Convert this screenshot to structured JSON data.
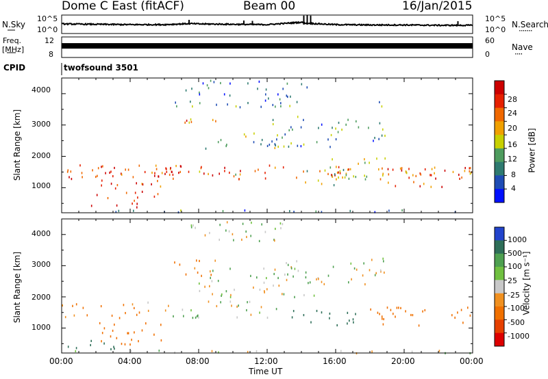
{
  "header": {
    "station": "Dome C East (fitACF)",
    "beam": "Beam 00",
    "date": "16/Jan/2015"
  },
  "side_labels": {
    "nsky": "N.Sky",
    "nsearch": "N.Search",
    "nsearch_dots": "·······",
    "freq": "Freq.",
    "freq_unit": "[MHz]",
    "nave": "Nave",
    "nave_dots": "····",
    "cpid": "CPID",
    "cpid_text": "twofsound 3501"
  },
  "colors": {
    "power_scale": [
      "#0010ff",
      "#1e4cb4",
      "#2e7a70",
      "#4e9c5e",
      "#c8d000",
      "#f0a000",
      "#f06800",
      "#e62000",
      "#cc0000"
    ],
    "velocity_scale": [
      "#2244cc",
      "#2e6e58",
      "#4ea050",
      "#70c040",
      "#c8c8c8",
      "#f09020",
      "#f07000",
      "#e64000",
      "#dd0000"
    ],
    "grey": "#c8c8c8"
  },
  "chart_data": [
    {
      "type": "line",
      "name": "noise-panel",
      "left_axis": {
        "label": "N.Sky",
        "ticks": [
          "10^5",
          "10^0"
        ],
        "scale": "log"
      },
      "right_axis": {
        "label": "N.Search",
        "ticks": [
          "10^5",
          "10^0"
        ],
        "scale": "log"
      },
      "x_range_hours": [
        0,
        24
      ],
      "series": [
        {
          "name": "N.Sky",
          "x": [
            0,
            2,
            4,
            6,
            7.5,
            8,
            10,
            12,
            14,
            14.3,
            16,
            18,
            20,
            22,
            24
          ],
          "y_log10": [
            2.4,
            2.3,
            2.2,
            2.2,
            2.5,
            2.4,
            2.3,
            2.2,
            2.9,
            2.6,
            2.2,
            2.1,
            2.1,
            2.0,
            2.0
          ]
        }
      ]
    },
    {
      "type": "line",
      "name": "frequency-panel",
      "left_axis": {
        "label": "Freq. [MHz]",
        "ticks": [
          "12",
          "8"
        ],
        "range": [
          8,
          12
        ]
      },
      "right_axis": {
        "label": "Nave",
        "ticks": [
          "60",
          "0"
        ],
        "range": [
          0,
          60
        ]
      },
      "x_range_hours": [
        0,
        24
      ],
      "series": [
        {
          "name": "Freq.",
          "x": [
            0,
            24
          ],
          "y": [
            10.2,
            10.2
          ]
        }
      ]
    },
    {
      "type": "heatmap",
      "name": "power-panel",
      "title": "",
      "xlabel": "",
      "ylabel": "Slant Range [km]",
      "xlim": [
        0,
        24
      ],
      "ylim": [
        200,
        4500
      ],
      "y_ticks": [
        1000,
        2000,
        3000,
        4000
      ],
      "x_ticks": [
        "00:00",
        "04:00",
        "08:00",
        "12:00",
        "16:00",
        "20:00",
        "00:00"
      ],
      "colorbar": {
        "label": "Power [dB]",
        "ticks": [
          4,
          8,
          12,
          16,
          20,
          24,
          28
        ],
        "range": [
          0,
          30
        ]
      },
      "patches": [
        {
          "t": [
            0,
            24
          ],
          "r": [
            1300,
            1750
          ],
          "v": 22
        },
        {
          "t": [
            0,
            3
          ],
          "r": [
            1250,
            1850
          ],
          "v": 27
        },
        {
          "t": [
            3,
            10
          ],
          "r": [
            1400,
            1750
          ],
          "v": 24
        },
        {
          "t": [
            8,
            12
          ],
          "r": [
            1450,
            1700
          ],
          "v": 20
        },
        {
          "t": [
            2,
            6
          ],
          "r": [
            600,
            1250
          ],
          "v": 25
        },
        {
          "t": [
            1,
            4.5
          ],
          "r": [
            380,
            600
          ],
          "v": 27
        },
        {
          "t": [
            7,
            9
          ],
          "r": [
            2900,
            3300
          ],
          "v": 22
        },
        {
          "t": [
            8,
            13
          ],
          "r": [
            2200,
            2800
          ],
          "v": 12
        },
        {
          "t": [
            12,
            19
          ],
          "r": [
            2300,
            3300
          ],
          "v": 10
        },
        {
          "t": [
            14,
            18
          ],
          "r": [
            1100,
            1600
          ],
          "v": 14
        },
        {
          "t": [
            18.5,
            24
          ],
          "r": [
            1000,
            1700
          ],
          "v": 22
        },
        {
          "t": [
            15.5,
            19
          ],
          "r": [
            1300,
            2000
          ],
          "v": 16
        },
        {
          "t": [
            6.5,
            14.5
          ],
          "r": [
            3600,
            4450
          ],
          "v": 8
        },
        {
          "t": [
            17.5,
            19
          ],
          "r": [
            3600,
            3850
          ],
          "v": 7
        },
        {
          "t": [
            0,
            24
          ],
          "r": [
            220,
            320
          ],
          "v": 8
        }
      ]
    },
    {
      "type": "heatmap",
      "name": "velocity-panel",
      "title": "",
      "xlabel": "Time UT",
      "ylabel": "Slant Range [km]",
      "xlim": [
        0,
        24
      ],
      "ylim": [
        200,
        4500
      ],
      "y_ticks": [
        1000,
        2000,
        3000,
        4000
      ],
      "x_ticks": [
        "00:00",
        "04:00",
        "08:00",
        "12:00",
        "16:00",
        "20:00",
        "00:00"
      ],
      "colorbar": {
        "label": "Velocity [m s^-1]",
        "ticks": [
          "1000",
          "500",
          "100",
          "25",
          "-25",
          "-100",
          "-500",
          "-1000"
        ]
      },
      "patches": [
        {
          "t": [
            0,
            5
          ],
          "r": [
            1300,
            1800
          ],
          "v": -120
        },
        {
          "t": [
            5,
            13
          ],
          "r": [
            1350,
            1900
          ],
          "v": 0
        },
        {
          "t": [
            2,
            6
          ],
          "r": [
            500,
            1200
          ],
          "v": -200
        },
        {
          "t": [
            0,
            3.5
          ],
          "r": [
            350,
            650
          ],
          "v": 150
        },
        {
          "t": [
            6.5,
            9.5
          ],
          "r": [
            2700,
            3200
          ],
          "v": -150
        },
        {
          "t": [
            8,
            15
          ],
          "r": [
            2000,
            3000
          ],
          "v": 0
        },
        {
          "t": [
            13,
            19
          ],
          "r": [
            2400,
            3300
          ],
          "v": 0
        },
        {
          "t": [
            13,
            18
          ],
          "r": [
            1100,
            1600
          ],
          "v": 300
        },
        {
          "t": [
            18,
            24
          ],
          "r": [
            1100,
            1700
          ],
          "v": -200
        },
        {
          "t": [
            7,
            13
          ],
          "r": [
            3800,
            4450
          ],
          "v": 0
        },
        {
          "t": [
            0,
            24
          ],
          "r": [
            220,
            320
          ],
          "v": 0
        }
      ]
    }
  ],
  "axis_text": {
    "left_ticks": [
      "4000",
      "3000",
      "2000",
      "1000"
    ],
    "time_ticks": [
      "00:00",
      "04:00",
      "08:00",
      "12:00",
      "16:00",
      "20:00",
      "00:00"
    ],
    "xlabel": "Time UT",
    "ylabel": "Slant Range [km]",
    "noise_left_ticks": [
      "10^5",
      "10^0"
    ],
    "noise_right_ticks": [
      "10^5",
      "10^0"
    ],
    "freq_ticks": [
      "12",
      "8"
    ],
    "nave_ticks": [
      "60",
      "0"
    ],
    "power_label": "Power [dB]",
    "power_ticks": [
      "28",
      "24",
      "20",
      "16",
      "12",
      "8",
      "4"
    ],
    "vel_label": "Velocity [m s⁻¹]",
    "vel_ticks": [
      "1000",
      "500",
      "100",
      "25",
      "-25",
      "-100",
      "-500",
      "-1000"
    ]
  }
}
